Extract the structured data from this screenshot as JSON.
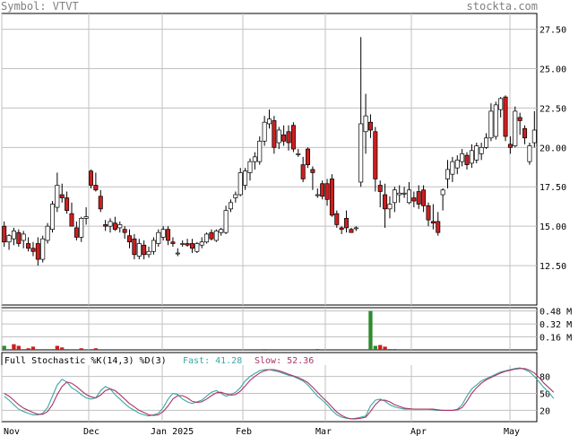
{
  "header": {
    "symbol_text": "Symbol: VTVT",
    "brand_text": "stockta.com"
  },
  "chart_data": [
    {
      "type": "candlestick",
      "title": "",
      "x_ticks": [
        "Nov",
        "Dec",
        "Jan 2025",
        "Feb",
        "Mar",
        "Apr",
        "May"
      ],
      "y_ticks": [
        12.5,
        15.0,
        17.5,
        20.0,
        22.5,
        25.0,
        27.5
      ],
      "y_tick_labels": [
        "12.50",
        "15.00",
        "17.50",
        "20.00",
        "22.50",
        "25.00",
        "27.50"
      ],
      "ylim": [
        10.0,
        28.5
      ],
      "colors": {
        "up": "#ffffff",
        "down": "#cc1f1f",
        "wick": "#000000",
        "grid": "#c0c0c0"
      },
      "candles": [
        {
          "o": 15.0,
          "h": 15.3,
          "l": 13.7,
          "c": 14.0
        },
        {
          "o": 14.0,
          "h": 14.5,
          "l": 13.5,
          "c": 14.4
        },
        {
          "o": 14.2,
          "h": 14.9,
          "l": 13.8,
          "c": 14.7
        },
        {
          "o": 14.6,
          "h": 14.8,
          "l": 13.7,
          "c": 13.9
        },
        {
          "o": 14.1,
          "h": 14.7,
          "l": 13.6,
          "c": 14.5
        },
        {
          "o": 13.9,
          "h": 14.3,
          "l": 13.4,
          "c": 13.6
        },
        {
          "o": 13.6,
          "h": 14.0,
          "l": 13.1,
          "c": 13.4
        },
        {
          "o": 13.9,
          "h": 14.3,
          "l": 12.5,
          "c": 12.9
        },
        {
          "o": 12.9,
          "h": 14.4,
          "l": 12.7,
          "c": 14.2
        },
        {
          "o": 14.1,
          "h": 15.2,
          "l": 13.9,
          "c": 15.0
        },
        {
          "o": 14.8,
          "h": 16.6,
          "l": 14.6,
          "c": 16.4
        },
        {
          "o": 16.2,
          "h": 18.4,
          "l": 15.9,
          "c": 17.6
        },
        {
          "o": 17.0,
          "h": 17.7,
          "l": 16.5,
          "c": 16.8
        },
        {
          "o": 16.8,
          "h": 17.2,
          "l": 15.8,
          "c": 16.0
        },
        {
          "o": 15.8,
          "h": 16.5,
          "l": 15.0,
          "c": 15.0
        },
        {
          "o": 14.9,
          "h": 15.3,
          "l": 14.1,
          "c": 14.3
        },
        {
          "o": 14.3,
          "h": 15.6,
          "l": 14.0,
          "c": 15.5
        },
        {
          "o": 15.5,
          "h": 16.2,
          "l": 15.1,
          "c": 15.6
        },
        {
          "o": 18.5,
          "h": 18.6,
          "l": 17.4,
          "c": 17.6
        },
        {
          "o": 17.6,
          "h": 18.4,
          "l": 17.2,
          "c": 17.3
        },
        {
          "o": 16.9,
          "h": 17.3,
          "l": 15.9,
          "c": 16.1
        },
        {
          "o": 15.1,
          "h": 15.4,
          "l": 14.7,
          "c": 15.0
        },
        {
          "o": 15.0,
          "h": 15.5,
          "l": 14.6,
          "c": 15.3
        },
        {
          "o": 15.2,
          "h": 15.6,
          "l": 14.7,
          "c": 14.8
        },
        {
          "o": 14.9,
          "h": 15.3,
          "l": 14.6,
          "c": 15.1
        },
        {
          "o": 14.8,
          "h": 15.0,
          "l": 14.2,
          "c": 14.6
        },
        {
          "o": 14.4,
          "h": 14.8,
          "l": 13.6,
          "c": 14.0
        },
        {
          "o": 14.2,
          "h": 14.5,
          "l": 12.9,
          "c": 13.2
        },
        {
          "o": 13.1,
          "h": 14.2,
          "l": 12.9,
          "c": 13.9
        },
        {
          "o": 13.8,
          "h": 14.1,
          "l": 12.9,
          "c": 13.2
        },
        {
          "o": 13.2,
          "h": 13.7,
          "l": 13.0,
          "c": 13.4
        },
        {
          "o": 13.4,
          "h": 14.3,
          "l": 13.2,
          "c": 14.1
        },
        {
          "o": 13.9,
          "h": 14.8,
          "l": 13.7,
          "c": 14.6
        },
        {
          "o": 14.3,
          "h": 15.0,
          "l": 14.1,
          "c": 14.8
        },
        {
          "o": 14.8,
          "h": 15.0,
          "l": 13.8,
          "c": 14.1
        },
        {
          "o": 14.0,
          "h": 14.3,
          "l": 13.7,
          "c": 13.9
        },
        {
          "o": 13.3,
          "h": 13.6,
          "l": 13.1,
          "c": 13.3
        },
        {
          "o": 13.9,
          "h": 14.1,
          "l": 13.7,
          "c": 13.9
        },
        {
          "o": 13.9,
          "h": 14.2,
          "l": 13.7,
          "c": 13.8
        },
        {
          "o": 13.9,
          "h": 14.2,
          "l": 13.3,
          "c": 13.6
        },
        {
          "o": 13.4,
          "h": 14.0,
          "l": 13.3,
          "c": 13.9
        },
        {
          "o": 13.8,
          "h": 14.3,
          "l": 13.6,
          "c": 14.0
        },
        {
          "o": 14.0,
          "h": 14.6,
          "l": 13.9,
          "c": 14.5
        },
        {
          "o": 14.6,
          "h": 14.8,
          "l": 14.1,
          "c": 14.2
        },
        {
          "o": 14.1,
          "h": 14.8,
          "l": 14.0,
          "c": 14.7
        },
        {
          "o": 14.6,
          "h": 14.9,
          "l": 14.4,
          "c": 14.8
        },
        {
          "o": 14.6,
          "h": 16.3,
          "l": 14.5,
          "c": 16.0
        },
        {
          "o": 16.1,
          "h": 16.7,
          "l": 15.9,
          "c": 16.5
        },
        {
          "o": 16.8,
          "h": 17.2,
          "l": 16.5,
          "c": 17.0
        },
        {
          "o": 17.0,
          "h": 18.7,
          "l": 16.9,
          "c": 18.4
        },
        {
          "o": 17.6,
          "h": 18.7,
          "l": 17.3,
          "c": 18.5
        },
        {
          "o": 18.4,
          "h": 19.3,
          "l": 17.9,
          "c": 19.1
        },
        {
          "o": 19.1,
          "h": 19.7,
          "l": 18.6,
          "c": 19.4
        },
        {
          "o": 19.1,
          "h": 20.7,
          "l": 18.9,
          "c": 20.4
        },
        {
          "o": 20.4,
          "h": 22.0,
          "l": 20.1,
          "c": 21.6
        },
        {
          "o": 21.5,
          "h": 22.4,
          "l": 21.2,
          "c": 21.8
        },
        {
          "o": 21.7,
          "h": 22.0,
          "l": 19.6,
          "c": 20.0
        },
        {
          "o": 20.3,
          "h": 21.3,
          "l": 19.9,
          "c": 21.1
        },
        {
          "o": 20.8,
          "h": 21.4,
          "l": 20.1,
          "c": 20.4
        },
        {
          "o": 21.0,
          "h": 21.4,
          "l": 19.8,
          "c": 20.3
        },
        {
          "o": 21.4,
          "h": 21.6,
          "l": 19.7,
          "c": 19.9
        },
        {
          "o": 19.6,
          "h": 19.9,
          "l": 19.4,
          "c": 19.6
        },
        {
          "o": 18.9,
          "h": 19.4,
          "l": 17.8,
          "c": 18.0
        },
        {
          "o": 19.9,
          "h": 20.0,
          "l": 18.7,
          "c": 18.9
        },
        {
          "o": 18.6,
          "h": 18.8,
          "l": 17.3,
          "c": 18.4
        },
        {
          "o": 17.0,
          "h": 17.4,
          "l": 16.8,
          "c": 17.0
        },
        {
          "o": 17.7,
          "h": 17.9,
          "l": 16.7,
          "c": 16.9
        },
        {
          "o": 17.7,
          "h": 18.0,
          "l": 16.3,
          "c": 16.7
        },
        {
          "o": 18.0,
          "h": 18.3,
          "l": 15.6,
          "c": 15.7
        },
        {
          "o": 15.8,
          "h": 16.0,
          "l": 14.9,
          "c": 15.1
        },
        {
          "o": 14.9,
          "h": 15.0,
          "l": 14.5,
          "c": 14.8
        },
        {
          "o": 15.5,
          "h": 16.0,
          "l": 14.6,
          "c": 14.9
        },
        {
          "o": 14.8,
          "h": 14.9,
          "l": 14.6,
          "c": 14.6
        },
        {
          "o": 14.9,
          "h": 15.0,
          "l": 14.7,
          "c": 14.9
        },
        {
          "o": 17.8,
          "h": 27.0,
          "l": 17.5,
          "c": 21.5
        },
        {
          "o": 21.0,
          "h": 23.4,
          "l": 19.6,
          "c": 22.0
        },
        {
          "o": 21.6,
          "h": 22.1,
          "l": 20.6,
          "c": 21.1
        },
        {
          "o": 21.0,
          "h": 21.3,
          "l": 17.2,
          "c": 18.0
        },
        {
          "o": 17.6,
          "h": 17.9,
          "l": 16.2,
          "c": 17.2
        },
        {
          "o": 17.0,
          "h": 17.7,
          "l": 14.9,
          "c": 16.1
        },
        {
          "o": 16.1,
          "h": 16.9,
          "l": 15.5,
          "c": 16.4
        },
        {
          "o": 16.5,
          "h": 17.5,
          "l": 15.9,
          "c": 17.3
        },
        {
          "o": 17.0,
          "h": 17.6,
          "l": 16.5,
          "c": 17.1
        },
        {
          "o": 17.1,
          "h": 17.5,
          "l": 16.8,
          "c": 17.1
        },
        {
          "o": 16.5,
          "h": 17.8,
          "l": 16.4,
          "c": 17.3
        },
        {
          "o": 16.8,
          "h": 17.2,
          "l": 16.2,
          "c": 16.6
        },
        {
          "o": 17.2,
          "h": 17.6,
          "l": 16.1,
          "c": 16.4
        },
        {
          "o": 17.3,
          "h": 17.6,
          "l": 15.9,
          "c": 16.3
        },
        {
          "o": 16.3,
          "h": 16.5,
          "l": 15.0,
          "c": 15.4
        },
        {
          "o": 15.3,
          "h": 16.4,
          "l": 14.8,
          "c": 15.2
        },
        {
          "o": 15.3,
          "h": 15.9,
          "l": 14.4,
          "c": 14.6
        },
        {
          "o": 17.0,
          "h": 17.4,
          "l": 16.0,
          "c": 17.3
        },
        {
          "o": 18.0,
          "h": 19.2,
          "l": 17.4,
          "c": 18.6
        },
        {
          "o": 18.3,
          "h": 19.4,
          "l": 17.8,
          "c": 19.1
        },
        {
          "o": 18.7,
          "h": 19.5,
          "l": 18.3,
          "c": 19.2
        },
        {
          "o": 19.1,
          "h": 19.9,
          "l": 18.8,
          "c": 19.6
        },
        {
          "o": 19.5,
          "h": 19.7,
          "l": 18.6,
          "c": 18.9
        },
        {
          "o": 19.0,
          "h": 20.2,
          "l": 18.7,
          "c": 19.8
        },
        {
          "o": 19.2,
          "h": 20.3,
          "l": 19.0,
          "c": 20.1
        },
        {
          "o": 19.6,
          "h": 20.3,
          "l": 19.2,
          "c": 20.0
        },
        {
          "o": 20.0,
          "h": 20.9,
          "l": 19.9,
          "c": 20.6
        },
        {
          "o": 20.6,
          "h": 22.8,
          "l": 20.4,
          "c": 22.3
        },
        {
          "o": 20.7,
          "h": 22.9,
          "l": 20.5,
          "c": 22.7
        },
        {
          "o": 22.4,
          "h": 23.2,
          "l": 21.9,
          "c": 23.1
        },
        {
          "o": 23.2,
          "h": 23.3,
          "l": 20.4,
          "c": 20.7
        },
        {
          "o": 20.2,
          "h": 20.7,
          "l": 19.6,
          "c": 20.0
        },
        {
          "o": 20.1,
          "h": 22.6,
          "l": 20.0,
          "c": 22.3
        },
        {
          "o": 21.9,
          "h": 22.2,
          "l": 20.8,
          "c": 21.7
        },
        {
          "o": 21.2,
          "h": 21.4,
          "l": 20.2,
          "c": 20.6
        },
        {
          "o": 19.1,
          "h": 20.3,
          "l": 18.9,
          "c": 20.1
        },
        {
          "o": 20.3,
          "h": 22.3,
          "l": 20.0,
          "c": 21.1
        }
      ]
    },
    {
      "type": "bar",
      "y_tick_labels": [
        "0.16 M",
        "0.32 M",
        "0.48 M"
      ],
      "y_ticks": [
        0.16,
        0.32,
        0.48
      ],
      "ylim": [
        0,
        0.52
      ],
      "values": [
        0.05,
        0.01,
        0.07,
        0.05,
        0.01,
        0.02,
        0.04,
        0.01,
        0.01,
        0.01,
        0.01,
        0.05,
        0.03,
        0.01,
        0.0,
        0.0,
        0.02,
        0.0,
        0.01,
        0.02,
        0.0,
        0.0,
        0.0,
        0.0,
        0.0,
        0.0,
        0.0,
        0.0,
        0.0,
        0.0,
        0.0,
        0.0,
        0.0,
        0.0,
        0.0,
        0.0,
        0.0,
        0.0,
        0.0,
        0.0,
        0.0,
        0.0,
        0.0,
        0.0,
        0.0,
        0.0,
        0.0,
        0.0,
        0.0,
        0.0,
        0.0,
        0.0,
        0.0,
        0.0,
        0.01,
        0.0,
        0.0,
        0.0,
        0.0,
        0.0,
        0.0,
        0.0,
        0.0,
        0.0,
        0.0,
        0.01,
        0.0,
        0.0,
        0.0,
        0.0,
        0.0,
        0.0,
        0.0,
        0.0,
        0.0,
        0.0,
        0.48,
        0.05,
        0.06,
        0.04,
        0.01,
        0.01,
        0.0,
        0.0,
        0.0,
        0.0,
        0.0,
        0.0,
        0.0,
        0.0,
        0.0,
        0.0,
        0.0,
        0.0,
        0.0,
        0.0,
        0.0,
        0.0,
        0.0,
        0.0,
        0.0,
        0.0,
        0.0,
        0.0,
        0.0,
        0.0,
        0.0,
        0.0,
        0.0,
        0.0,
        0.0
      ],
      "up_down": [
        "u",
        "u",
        "d",
        "d",
        "u",
        "d",
        "d",
        "u",
        "u",
        "u",
        "u",
        "d",
        "d",
        "u",
        "d",
        "u",
        "d",
        "u",
        "u",
        "d",
        "d",
        "u",
        "d",
        "d",
        "u",
        "d",
        "d",
        "d",
        "u",
        "d",
        "u",
        "u",
        "u",
        "u",
        "d",
        "d",
        "d",
        "d",
        "d",
        "d",
        "u",
        "u",
        "u",
        "d",
        "u",
        "u",
        "u",
        "u",
        "u",
        "u",
        "u",
        "u",
        "u",
        "u",
        "u",
        "u",
        "d",
        "u",
        "d",
        "d",
        "d",
        "d",
        "d",
        "d",
        "d",
        "d",
        "d",
        "d",
        "d",
        "d",
        "d",
        "d",
        "d",
        "d",
        "d",
        "d",
        "u",
        "u",
        "d",
        "d",
        "d",
        "d",
        "u",
        "u",
        "u",
        "u",
        "u",
        "d",
        "d",
        "d",
        "d",
        "d",
        "d",
        "u",
        "u",
        "u",
        "u",
        "u",
        "d",
        "u",
        "u",
        "u",
        "u",
        "u",
        "u",
        "u",
        "d",
        "d",
        "u",
        "d",
        "d",
        "u",
        "u"
      ]
    },
    {
      "type": "line",
      "label": "Full Stochastic %K(14,3) %D(3)",
      "fast_label": "Fast: 41.28",
      "slow_label": "Slow: 52.36",
      "y_tick_labels": [
        "20",
        "50",
        "80"
      ],
      "y_ticks": [
        20,
        50,
        80
      ],
      "ylim": [
        0,
        100
      ],
      "series": [
        {
          "name": "Fast",
          "color": "#3aa7a3",
          "values": [
            45,
            38,
            30,
            22,
            18,
            15,
            12,
            12,
            15,
            25,
            45,
            65,
            75,
            70,
            60,
            55,
            48,
            42,
            40,
            42,
            55,
            62,
            58,
            48,
            40,
            32,
            25,
            20,
            15,
            12,
            10,
            12,
            15,
            25,
            40,
            50,
            48,
            40,
            35,
            32,
            35,
            38,
            45,
            52,
            55,
            50,
            45,
            48,
            52,
            60,
            72,
            80,
            85,
            90,
            92,
            92,
            90,
            88,
            85,
            82,
            80,
            76,
            72,
            65,
            55,
            45,
            38,
            30,
            20,
            12,
            8,
            6,
            5,
            6,
            8,
            10,
            28,
            38,
            40,
            36,
            30,
            26,
            24,
            22,
            22,
            22,
            22,
            22,
            22,
            21,
            20,
            20,
            20,
            20,
            22,
            30,
            45,
            58,
            65,
            72,
            76,
            80,
            84,
            88,
            90,
            92,
            94,
            95,
            92,
            88,
            80,
            70,
            60,
            52,
            41
          ]
        },
        {
          "name": "Slow",
          "color": "#aa3366",
          "values": [
            50,
            45,
            38,
            30,
            24,
            20,
            16,
            13,
            13,
            18,
            30,
            48,
            62,
            70,
            68,
            62,
            55,
            48,
            44,
            42,
            47,
            55,
            58,
            55,
            48,
            40,
            32,
            26,
            20,
            16,
            12,
            11,
            12,
            18,
            28,
            40,
            46,
            46,
            42,
            36,
            34,
            35,
            40,
            46,
            51,
            52,
            49,
            47,
            48,
            54,
            63,
            73,
            80,
            86,
            90,
            92,
            92,
            90,
            87,
            84,
            81,
            78,
            74,
            69,
            61,
            52,
            43,
            35,
            26,
            17,
            11,
            7,
            5,
            5,
            6,
            8,
            18,
            30,
            38,
            38,
            35,
            30,
            27,
            24,
            23,
            22,
            22,
            22,
            22,
            22,
            21,
            20,
            20,
            20,
            21,
            25,
            36,
            50,
            60,
            68,
            74,
            78,
            82,
            86,
            89,
            91,
            93,
            94,
            94,
            91,
            86,
            78,
            68,
            60,
            52
          ]
        }
      ]
    }
  ]
}
